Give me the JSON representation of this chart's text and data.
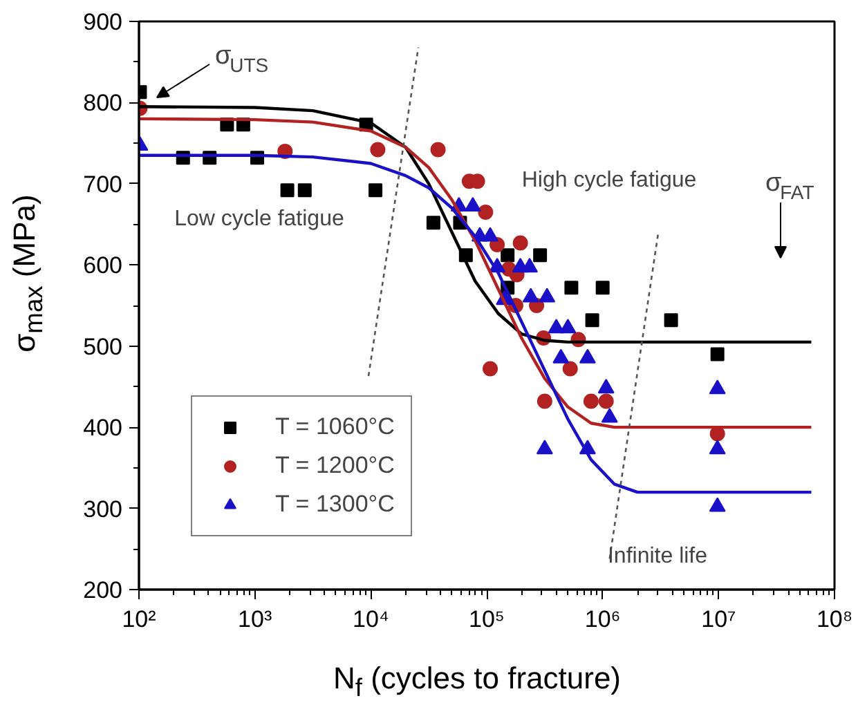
{
  "chart_data": {
    "type": "scatter",
    "xlabel": "N$_{f}$ (cycles to fracture)",
    "ylabel": "σ$_{max}$ (MPa)",
    "log": "x",
    "xlim": [
      100,
      100000000
    ],
    "ylim": [
      200,
      900
    ],
    "xticks": [
      {
        "value": 100,
        "label": "10²"
      },
      {
        "value": 1000,
        "label": "10³"
      },
      {
        "value": 10000,
        "label": "10⁴"
      },
      {
        "value": 100000,
        "label": "10⁵"
      },
      {
        "value": 1000000,
        "label": "10⁶"
      },
      {
        "value": 10000000,
        "label": "10⁷"
      },
      {
        "value": 100000000,
        "label": "10⁸"
      }
    ],
    "yticks": [
      200,
      300,
      400,
      500,
      600,
      700,
      800,
      900
    ],
    "grid": false,
    "legend": "bottom left",
    "series": [
      {
        "name": "T = 1060°C",
        "color": "#000000",
        "marker": "square",
        "x": [
          102,
          575,
          794,
          240,
          407,
          1047,
          1905,
          2692,
          9120,
          10965,
          34674,
          58884,
          66069,
          151356,
          151356,
          288403,
          537032,
          812831,
          1000000,
          3890451,
          9772372
        ],
        "values": [
          813,
          773,
          773,
          732,
          732,
          732,
          692,
          692,
          773,
          692,
          652,
          652,
          612,
          612,
          572,
          612,
          572,
          532,
          572,
          532,
          490
        ]
      },
      {
        "name": "T = 1200°C",
        "color": "#b22222",
        "marker": "circle",
        "x": [
          102,
          1820,
          11482,
          38019,
          70795,
          83176,
          97724,
          123027,
          194984,
          154882,
          181970,
          177828,
          269153,
          309030,
          616595,
          107152,
          524807,
          316228,
          794328,
          1071519,
          9772372
        ],
        "values": [
          793,
          740,
          742,
          742,
          703,
          703,
          665,
          625,
          627,
          595,
          588,
          550,
          550,
          510,
          508,
          472,
          472,
          432,
          432,
          432,
          392
        ]
      },
      {
        "name": "T = 1300°C",
        "color": "#1a10c8",
        "marker": "triangle",
        "x": [
          102,
          57544,
          75858,
          87096,
          107152,
          123027,
          194984,
          234423,
          141254,
          239883,
          331131,
          398107,
          501187,
          436516,
          741310,
          1071519,
          1148154,
          9772372,
          316228,
          741310,
          9772372,
          9772372
        ],
        "values": [
          747,
          672,
          672,
          635,
          635,
          597,
          597,
          597,
          557,
          560,
          560,
          522,
          522,
          485,
          485,
          448,
          412,
          447,
          373,
          373,
          373,
          302
        ]
      },
      {
        "type": "line",
        "color": "#000000",
        "x": [
          100,
          1000,
          3162,
          10000,
          19953,
          31623,
          50119,
          79433,
          125893,
          199526,
          316228,
          501187,
          63095734
        ],
        "values": [
          795,
          794,
          790,
          775,
          745,
          700,
          640,
          580,
          540,
          515,
          507,
          505,
          505
        ]
      },
      {
        "type": "line",
        "color": "#b22222",
        "x": [
          100,
          1000,
          3162,
          10000,
          19953,
          31623,
          50119,
          79433,
          125893,
          199526,
          316228,
          501187,
          794328,
          1258925,
          63095734
        ],
        "values": [
          780,
          779,
          776,
          765,
          745,
          720,
          680,
          630,
          570,
          510,
          460,
          425,
          405,
          400,
          400
        ]
      },
      {
        "type": "line",
        "color": "#1a10c8",
        "x": [
          100,
          1000,
          3162,
          10000,
          19953,
          31623,
          50119,
          79433,
          125893,
          199526,
          316228,
          501187,
          794328,
          1258925,
          1995262,
          63095734
        ],
        "values": [
          735,
          735,
          733,
          725,
          710,
          695,
          670,
          635,
          590,
          530,
          470,
          410,
          360,
          330,
          320,
          320
        ]
      },
      {
        "type": "line",
        "color": "#555555",
        "line_style": "dashed",
        "x": [
          9550,
          25704
        ],
        "values": [
          463,
          868
        ]
      },
      {
        "type": "line",
        "color": "#555555",
        "line_style": "dashed",
        "x": [
          1148154,
          3019952
        ],
        "values": [
          238,
          640
        ]
      }
    ],
    "annotations": [
      "σ$_{UTS}$",
      "σ$_{FAT}$",
      "Low cycle fatigue",
      "High cycle fatigue",
      "Infinite life"
    ]
  }
}
